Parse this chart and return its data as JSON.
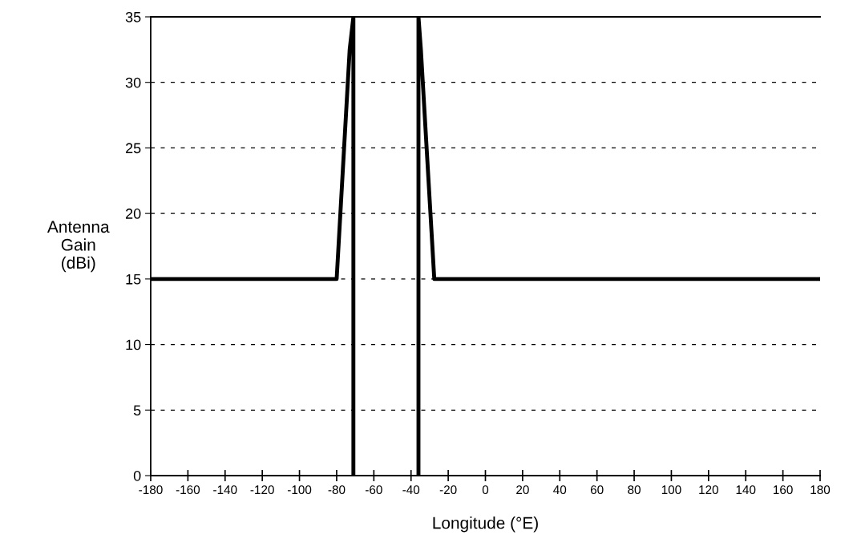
{
  "chart_data": {
    "type": "line",
    "xlabel": "Longitude (°E)",
    "ylabel": "Antenna\nGain\n(dBi)",
    "x": [
      -180,
      -80,
      -73,
      -71,
      -71,
      null,
      -36,
      -36,
      -34.7,
      -27.5,
      180
    ],
    "series": [
      {
        "color": "#000000",
        "values": [
          15,
          15,
          32.5,
          35,
          0,
          null,
          0,
          35,
          32.5,
          15,
          15
        ]
      }
    ],
    "xlim": [
      -180,
      180
    ],
    "xticks": [
      -180,
      -160,
      -140,
      -120,
      -100,
      -80,
      -60,
      -40,
      -20,
      0,
      20,
      40,
      60,
      80,
      100,
      120,
      140,
      160,
      180
    ],
    "ylim": [
      0,
      35
    ],
    "yticks": [
      0,
      5,
      10,
      15,
      20,
      25,
      30,
      35
    ],
    "grid": "y",
    "marker": "none",
    "line_style": "solid"
  }
}
